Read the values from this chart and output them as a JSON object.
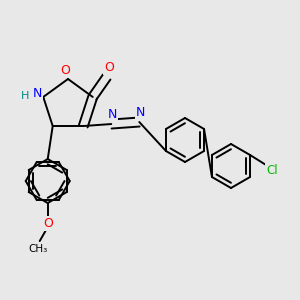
{
  "bg_color": "#e8e8e8",
  "atom_colors": {
    "O": "#ff0000",
    "N": "#0000ff",
    "C": "#000000",
    "Cl": "#00bb00",
    "H": "#008888"
  },
  "bond_color": "#000000",
  "bond_width": 1.4,
  "figsize": [
    3.0,
    3.0
  ],
  "dpi": 100
}
